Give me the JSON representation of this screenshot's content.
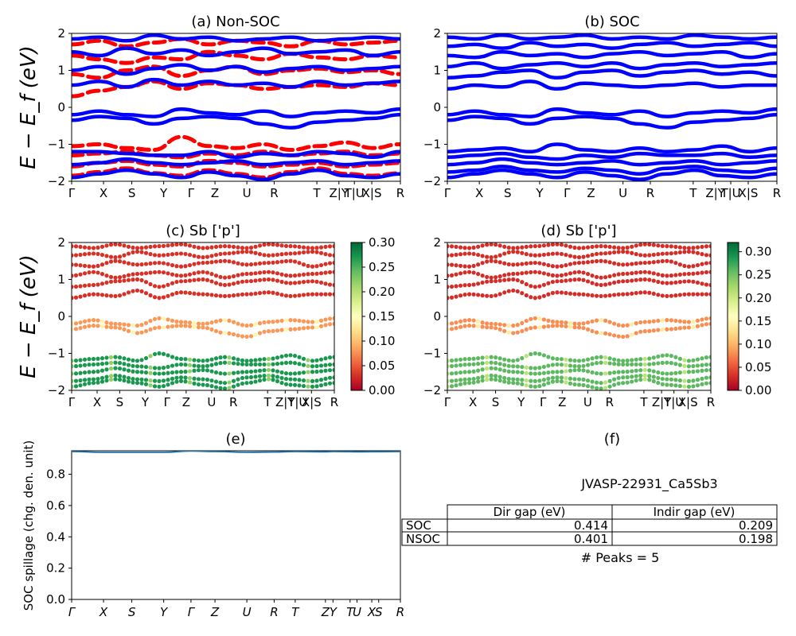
{
  "colors": {
    "nonsoc": "#ff0000",
    "soc": "#0000ff",
    "spillage": "#1f77b4",
    "colormap": "RdYlGn"
  },
  "panels": {
    "a": {
      "title": "(a) Non-SOC"
    },
    "b": {
      "title": "(b) SOC"
    },
    "c": {
      "title": "(c)  Sb ['p']"
    },
    "d": {
      "title": "(d) Sb ['p']"
    },
    "e": {
      "title": "(e)"
    },
    "f": {
      "title": "(f)"
    }
  },
  "ylabel_band": "E − E_f (eV)",
  "ylabel_spillage": "SOC spillage (chg. den. unit)",
  "kpath_labels_ab": [
    "Γ",
    "X",
    "S",
    "Y",
    "Γ",
    "Z",
    "U",
    "R",
    "T",
    "Z|Y",
    "T|U",
    "X|S",
    "R"
  ],
  "kpath_labels_cd": [
    "Γ",
    "X",
    "S",
    "Y",
    "Γ",
    "Z",
    "U",
    "R",
    "T",
    "Z|Y",
    "T|U",
    "X|S",
    "R"
  ],
  "kpath_labels_e": [
    "Γ",
    "X",
    "S",
    "Y",
    "Γ",
    "Z",
    "U",
    "R",
    "T",
    "Z",
    "Y",
    "T",
    "U",
    "X",
    "S",
    "R"
  ],
  "band_yticks": [
    "−2",
    "−1",
    "0",
    "1",
    "2"
  ],
  "colorbar_c": {
    "ticks": [
      "0.00",
      "0.05",
      "0.10",
      "0.15",
      "0.20",
      "0.25",
      "0.30"
    ],
    "range": [
      0,
      0.3
    ]
  },
  "colorbar_d": {
    "ticks": [
      "0.00",
      "0.05",
      "0.10",
      "0.15",
      "0.20",
      "0.25",
      "0.30"
    ],
    "range": [
      0,
      0.32
    ]
  },
  "spillage_yticks": [
    "0.0",
    "0.2",
    "0.4",
    "0.6",
    "0.8"
  ],
  "info": {
    "jid": "JVASP-22931_Ca5Sb3",
    "table": {
      "headers": [
        "Dir gap (eV)",
        "Indir gap (eV)"
      ],
      "rows": [
        {
          "label": "SOC",
          "dir": "0.414",
          "indir": "0.209"
        },
        {
          "label": "NSOC",
          "dir": "0.401",
          "indir": "0.198"
        }
      ]
    },
    "peaks": "# Peaks = 5"
  },
  "chart_data": [
    {
      "type": "line",
      "title": "(a) Non-SOC",
      "ylabel": "E − E_f (eV)",
      "ylim": [
        -2,
        2
      ],
      "series": [
        {
          "name": "",
          "style": "dashed",
          "bands": [
            [
              -1.85,
              -1.75,
              -1.65,
              -1.78,
              -1.85,
              -1.7,
              -1.8,
              -1.9,
              -1.75,
              -1.65,
              -1.8,
              -1.85,
              -1.78
            ],
            [
              -1.6,
              -1.5,
              -1.45,
              -1.55,
              -1.6,
              -1.45,
              -1.5,
              -1.6,
              -1.55,
              -1.5,
              -1.6,
              -1.55,
              -1.5
            ],
            [
              -1.3,
              -1.25,
              -1.2,
              -1.3,
              -1.35,
              -1.25,
              -1.3,
              -1.2,
              -1.3,
              -1.25,
              -1.2,
              -1.3,
              -1.25
            ],
            [
              -1.05,
              -1.0,
              -1.1,
              -1.15,
              -0.8,
              -1.05,
              -1.1,
              -1.0,
              -1.15,
              -1.05,
              -0.95,
              -1.1,
              -1.0
            ],
            [
              0.3,
              0.45,
              0.55,
              0.7,
              0.5,
              0.65,
              0.6,
              0.5,
              0.55,
              0.6,
              0.55,
              0.65,
              0.6
            ],
            [
              0.9,
              0.8,
              1.0,
              1.1,
              0.85,
              1.0,
              1.1,
              0.9,
              1.0,
              1.05,
              0.95,
              1.0,
              0.9
            ],
            [
              1.4,
              1.3,
              1.2,
              1.35,
              1.3,
              1.5,
              1.4,
              1.3,
              1.45,
              1.35,
              1.3,
              1.4,
              1.35
            ],
            [
              1.7,
              1.8,
              1.65,
              1.75,
              1.85,
              1.7,
              1.8,
              1.75,
              1.65,
              1.8,
              1.7,
              1.75,
              1.8
            ]
          ]
        },
        {
          "name": "",
          "style": "solid",
          "bands": [
            [
              -1.9,
              -1.8,
              -1.7,
              -1.8,
              -1.9,
              -1.75,
              -1.85,
              -1.95,
              -1.8,
              -1.7,
              -1.85,
              -1.9,
              -1.8
            ],
            [
              -1.55,
              -1.5,
              -1.4,
              -1.5,
              -1.55,
              -1.5,
              -1.45,
              -1.55,
              -1.5,
              -1.45,
              -1.55,
              -1.5,
              -1.45
            ],
            [
              -1.2,
              -1.2,
              -1.25,
              -1.3,
              -1.3,
              -1.2,
              -1.35,
              -1.25,
              -1.3,
              -1.2,
              -1.25,
              -1.35,
              -1.2
            ],
            [
              -0.2,
              -0.1,
              -0.2,
              -0.25,
              -0.05,
              -0.15,
              -0.2,
              -0.1,
              -0.25,
              -0.15,
              -0.1,
              -0.15,
              -0.05
            ],
            [
              -0.35,
              -0.25,
              -0.3,
              -0.45,
              -0.3,
              -0.25,
              -0.3,
              -0.45,
              -0.55,
              -0.4,
              -0.35,
              -0.3,
              -0.2
            ],
            [
              0.6,
              0.7,
              0.55,
              0.75,
              0.6,
              0.7,
              0.6,
              0.65,
              0.55,
              0.7,
              0.6,
              0.65,
              0.7
            ],
            [
              1.0,
              1.1,
              0.9,
              1.05,
              1.15,
              1.0,
              1.1,
              0.95,
              1.05,
              1.1,
              1.0,
              1.05,
              1.1
            ],
            [
              1.5,
              1.4,
              1.6,
              1.45,
              1.55,
              1.4,
              1.5,
              1.6,
              1.45,
              1.5,
              1.55,
              1.4,
              1.5
            ],
            [
              1.85,
              1.9,
              1.8,
              1.95,
              1.85,
              1.9,
              1.8,
              1.85,
              1.9,
              1.8,
              1.85,
              1.9,
              1.85
            ]
          ]
        }
      ]
    },
    {
      "type": "line",
      "title": "(b) SOC",
      "ylim": [
        -2,
        2
      ],
      "series": [
        {
          "name": "",
          "style": "solid",
          "bands": [
            [
              -1.9,
              -1.8,
              -1.7,
              -1.8,
              -1.9,
              -1.75,
              -1.85,
              -1.95,
              -1.8,
              -1.7,
              -1.85,
              -1.9,
              -1.8
            ],
            [
              -1.75,
              -1.7,
              -1.6,
              -1.7,
              -1.75,
              -1.65,
              -1.7,
              -1.8,
              -1.65,
              -1.6,
              -1.7,
              -1.75,
              -1.65
            ],
            [
              -1.55,
              -1.5,
              -1.4,
              -1.5,
              -1.55,
              -1.5,
              -1.45,
              -1.55,
              -1.5,
              -1.45,
              -1.55,
              -1.5,
              -1.45
            ],
            [
              -1.35,
              -1.3,
              -1.25,
              -1.35,
              -1.4,
              -1.3,
              -1.35,
              -1.25,
              -1.3,
              -1.3,
              -1.25,
              -1.35,
              -1.3
            ],
            [
              -1.2,
              -1.15,
              -1.1,
              -1.2,
              -1.0,
              -1.15,
              -1.2,
              -1.1,
              -1.2,
              -1.15,
              -1.05,
              -1.2,
              -1.1
            ],
            [
              -0.2,
              -0.1,
              -0.2,
              -0.25,
              -0.05,
              -0.15,
              -0.2,
              -0.1,
              -0.25,
              -0.15,
              -0.1,
              -0.15,
              -0.05
            ],
            [
              -0.35,
              -0.25,
              -0.3,
              -0.45,
              -0.3,
              -0.25,
              -0.3,
              -0.45,
              -0.55,
              -0.4,
              -0.35,
              -0.3,
              -0.2
            ],
            [
              0.5,
              0.6,
              0.55,
              0.7,
              0.5,
              0.65,
              0.6,
              0.55,
              0.6,
              0.65,
              0.55,
              0.6,
              0.6
            ],
            [
              0.8,
              0.85,
              0.95,
              1.0,
              0.8,
              0.95,
              1.0,
              0.85,
              0.95,
              1.0,
              0.9,
              0.95,
              0.85
            ],
            [
              1.1,
              1.2,
              1.05,
              1.15,
              1.2,
              1.1,
              1.2,
              1.05,
              1.15,
              1.2,
              1.1,
              1.15,
              1.2
            ],
            [
              1.4,
              1.35,
              1.5,
              1.4,
              1.45,
              1.35,
              1.45,
              1.5,
              1.4,
              1.45,
              1.5,
              1.35,
              1.45
            ],
            [
              1.65,
              1.7,
              1.6,
              1.75,
              1.65,
              1.7,
              1.6,
              1.7,
              1.75,
              1.65,
              1.7,
              1.75,
              1.65
            ],
            [
              1.9,
              1.85,
              1.95,
              1.85,
              1.9,
              1.95,
              1.85,
              1.9,
              1.85,
              1.95,
              1.9,
              1.85,
              1.9
            ]
          ]
        }
      ]
    },
    {
      "type": "scatter",
      "title": "(c)  Sb ['p']",
      "ylim": [
        -2,
        2
      ],
      "colorbar_range": [
        0,
        0.3
      ],
      "series": [
        {
          "name": "",
          "band_groups": {
            "conduction_weight": 0.03,
            "gap_weight": 0.08,
            "valence_weight": 0.27
          }
        }
      ]
    },
    {
      "type": "scatter",
      "title": "(d) Sb ['p']",
      "ylim": [
        -2,
        2
      ],
      "colorbar_range": [
        0,
        0.32
      ],
      "series": [
        {
          "name": "",
          "band_groups": {
            "conduction_weight": 0.03,
            "gap_weight": 0.08,
            "valence_weight": 0.26
          }
        }
      ]
    },
    {
      "type": "line",
      "title": "(e)",
      "ylabel": "SOC spillage (chg. den. unit)",
      "ylim": [
        0,
        0.95
      ],
      "x": [
        "Γ",
        "X",
        "S",
        "Y",
        "Γ",
        "Z",
        "U",
        "R",
        "T",
        "Z",
        "Y",
        "T",
        "U",
        "X",
        "S",
        "R"
      ],
      "series": [
        {
          "name": "",
          "values": [
            0.945,
            0.94,
            0.94,
            0.94,
            0.948,
            0.945,
            0.94,
            0.942,
            0.945,
            0.943,
            0.945,
            0.944,
            0.943,
            0.944,
            0.944,
            0.945
          ]
        }
      ]
    },
    {
      "type": "table",
      "title": "(f)",
      "columns": [
        "",
        "Dir gap (eV)",
        "Indir gap (eV)"
      ],
      "rows": [
        [
          "SOC",
          "0.414",
          "0.209"
        ],
        [
          "NSOC",
          "0.401",
          "0.198"
        ]
      ]
    }
  ]
}
